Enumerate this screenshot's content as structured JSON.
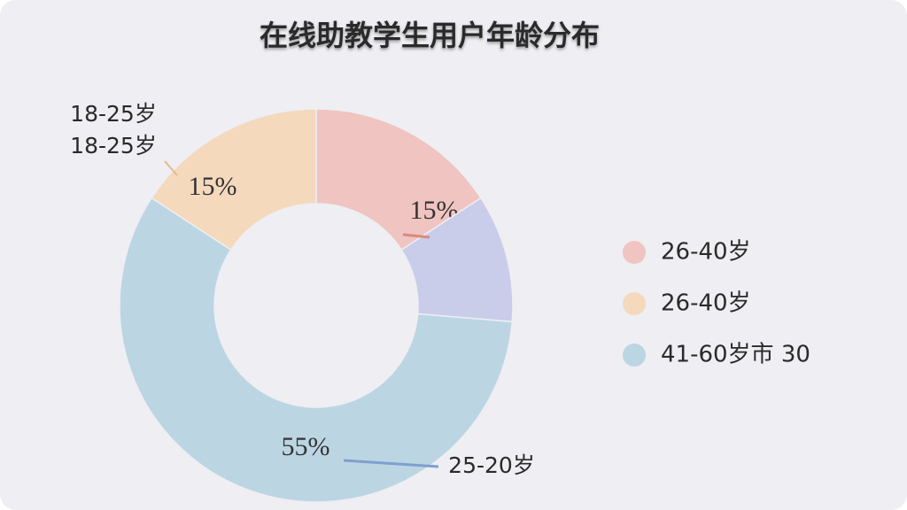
{
  "chart_data": {
    "type": "donut",
    "title": "在线助教学生用户年龄分布",
    "segments": [
      {
        "value": 15,
        "value_label": "15%",
        "color": "#f0c4c0"
      },
      {
        "value": 10,
        "color": "#c9cde9"
      },
      {
        "value": 55,
        "value_label": "55%",
        "color": "#bcd5e3"
      },
      {
        "value": 15,
        "value_label": "15%",
        "color": "#f5d9bd"
      }
    ],
    "legend": [
      {
        "name": "26-40岁",
        "color": "#f0c4c0"
      },
      {
        "name": "26-40岁",
        "color": "#f5d9bd"
      },
      {
        "name": "41-60岁市  30",
        "color": "#bcd5e3"
      }
    ],
    "annotations": [
      "18-25岁",
      "18-25岁",
      "25-20岁"
    ]
  }
}
